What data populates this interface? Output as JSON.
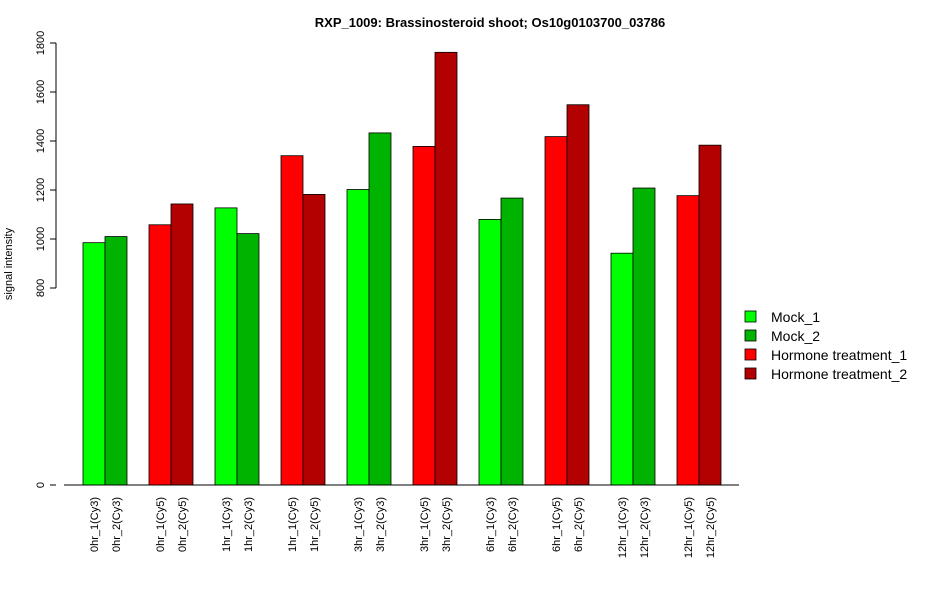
{
  "chart_data": {
    "type": "bar",
    "title": "RXP_1009: Brassinosteroid shoot; Os10g0103700_03786",
    "xlabel": "",
    "ylabel": "signal intensity",
    "yticks": [
      "0",
      "800",
      "1000",
      "1200",
      "1400",
      "1600",
      "1800"
    ],
    "grid": false,
    "legend_position": "right",
    "colors": {
      "Mock_1": "#00ff00",
      "Mock_2": "#00b300",
      "Hormone treatment_1": "#ff0000",
      "Hormone treatment_2": "#b30000"
    },
    "legend": [
      {
        "name": "Mock_1",
        "color": "#00ff00"
      },
      {
        "name": "Mock_2",
        "color": "#00b300"
      },
      {
        "name": "Hormone treatment_1",
        "color": "#ff0000"
      },
      {
        "name": "Hormone treatment_2",
        "color": "#b30000"
      }
    ],
    "bars": [
      {
        "label": "0hr_1(Cy3)",
        "value": 985,
        "series": "Mock_1"
      },
      {
        "label": "0hr_2(Cy3)",
        "value": 1010,
        "series": "Mock_2"
      },
      {
        "label": "0hr_1(Cy5)",
        "value": 1058,
        "series": "Hormone treatment_1"
      },
      {
        "label": "0hr_2(Cy5)",
        "value": 1143,
        "series": "Hormone treatment_2"
      },
      {
        "label": "1hr_1(Cy3)",
        "value": 1127,
        "series": "Mock_1"
      },
      {
        "label": "1hr_2(Cy3)",
        "value": 1022,
        "series": "Mock_2"
      },
      {
        "label": "1hr_1(Cy5)",
        "value": 1340,
        "series": "Hormone treatment_1"
      },
      {
        "label": "1hr_2(Cy5)",
        "value": 1182,
        "series": "Hormone treatment_2"
      },
      {
        "label": "3hr_1(Cy3)",
        "value": 1202,
        "series": "Mock_1"
      },
      {
        "label": "3hr_2(Cy3)",
        "value": 1433,
        "series": "Mock_2"
      },
      {
        "label": "3hr_1(Cy5)",
        "value": 1378,
        "series": "Hormone treatment_1"
      },
      {
        "label": "3hr_2(Cy5)",
        "value": 1762,
        "series": "Hormone treatment_2"
      },
      {
        "label": "6hr_1(Cy3)",
        "value": 1080,
        "series": "Mock_1"
      },
      {
        "label": "6hr_2(Cy3)",
        "value": 1167,
        "series": "Mock_2"
      },
      {
        "label": "6hr_1(Cy5)",
        "value": 1418,
        "series": "Hormone treatment_1"
      },
      {
        "label": "6hr_2(Cy5)",
        "value": 1548,
        "series": "Hormone treatment_2"
      },
      {
        "label": "12hr_1(Cy3)",
        "value": 942,
        "series": "Mock_1"
      },
      {
        "label": "12hr_2(Cy3)",
        "value": 1208,
        "series": "Mock_2"
      },
      {
        "label": "12hr_1(Cy5)",
        "value": 1177,
        "series": "Hormone treatment_1"
      },
      {
        "label": "12hr_2(Cy5)",
        "value": 1383,
        "series": "Hormone treatment_2"
      }
    ]
  }
}
